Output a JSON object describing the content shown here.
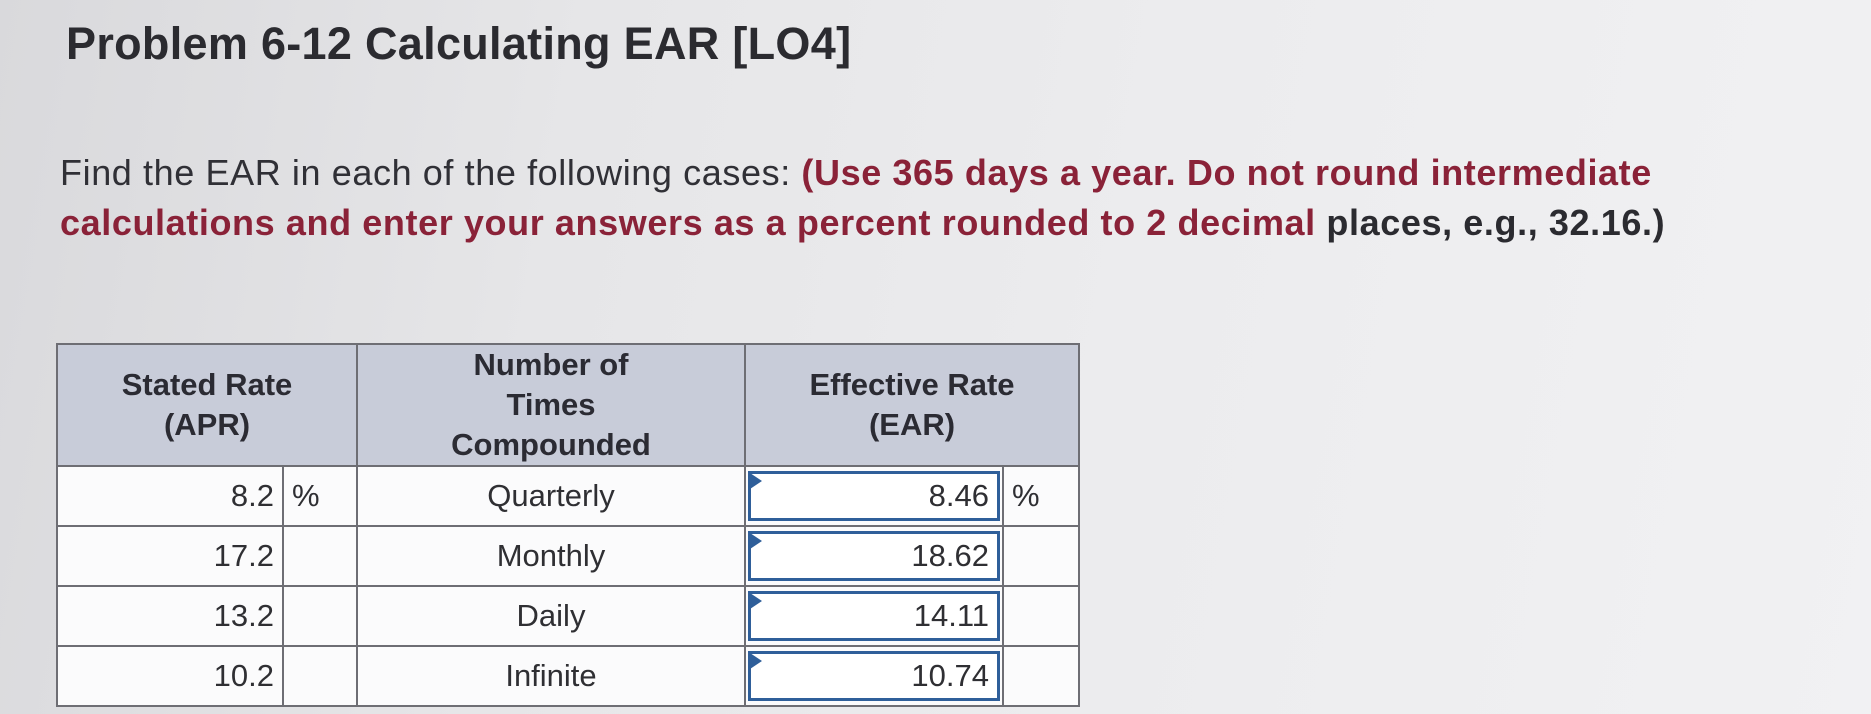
{
  "title": "Problem 6-12 Calculating EAR [LO4]",
  "question": {
    "lead": "Find the EAR in each of the following cases: ",
    "instruction": "(Use 365 days a year. Do not round intermediate calculations and enter your answers as a percent rounded to 2 decimal",
    "tail": "places, e.g., 32.16.)"
  },
  "table": {
    "headers": {
      "stated_rate": "Stated Rate (APR)",
      "compounded": "Number of Times Compounded",
      "ear": "Effective Rate (EAR)"
    },
    "rows": [
      {
        "apr": "8.2",
        "apr_unit": "%",
        "times": "Quarterly",
        "ear": "8.46",
        "ear_unit": "%"
      },
      {
        "apr": "17.2",
        "apr_unit": "",
        "times": "Monthly",
        "ear": "18.62",
        "ear_unit": ""
      },
      {
        "apr": "13.2",
        "apr_unit": "",
        "times": "Daily",
        "ear": "14.11",
        "ear_unit": ""
      },
      {
        "apr": "10.2",
        "apr_unit": "",
        "times": "Infinite",
        "ear": "10.74",
        "ear_unit": ""
      }
    ]
  }
}
